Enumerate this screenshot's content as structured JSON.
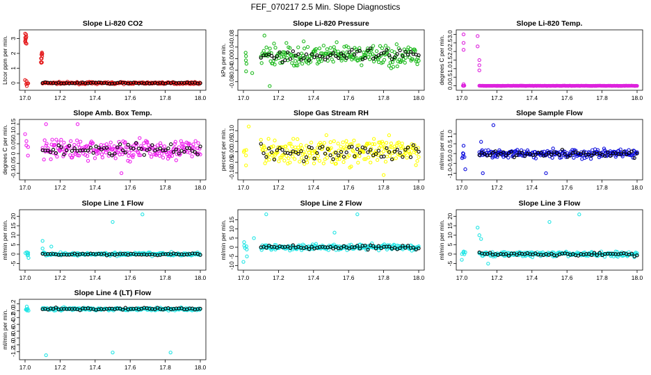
{
  "suptitle": "FEF_070217  2.5 Min. Slope Diagnostics",
  "chart_data": [
    {
      "type": "scatter",
      "title": "Slope Li-820 CO2",
      "ylabel": "Ltcor ppm per min.",
      "xlim": [
        17.0,
        18.0
      ],
      "ylim": [
        -0.3,
        3.4
      ],
      "xticks": [
        "17.0",
        "17.2",
        "17.4",
        "17.6",
        "17.8",
        "18.0"
      ],
      "yticks": [
        0,
        1,
        2,
        3
      ],
      "ytick_labels": [
        "0",
        "1",
        "2",
        "3"
      ],
      "color": "#e41a1c",
      "black_overlay": true,
      "series": {
        "clusters": [
          [
            17.0,
            17.01,
            3.0,
            0.4
          ],
          [
            17.09,
            17.1,
            1.7,
            0.4
          ]
        ],
        "base": 0.0,
        "spread": 0.08,
        "outliers": [
          [
            17.0,
            0.2
          ],
          [
            17.01,
            -0.2
          ]
        ]
      }
    },
    {
      "type": "scatter",
      "title": "Slope Li-820 Pressure",
      "ylabel": "kPa per min.",
      "xlim": [
        17.0,
        18.0
      ],
      "ylim": [
        -0.1,
        0.09
      ],
      "xticks": [
        "17.0",
        "17.2",
        "17.4",
        "17.6",
        "17.8",
        "18.0"
      ],
      "yticks": [
        -0.08,
        -0.04,
        0.0,
        0.04,
        0.08
      ],
      "ytick_labels": [
        "-0.08",
        "-0.04",
        "0.00",
        "0.04",
        "0.08"
      ],
      "color": "#22bb22",
      "black_overlay": true,
      "series": {
        "base": 0.01,
        "spread": 0.035,
        "outliers": [
          [
            17.15,
            -0.095
          ],
          [
            17.12,
            0.08
          ],
          [
            17.05,
            -0.05
          ]
        ]
      }
    },
    {
      "type": "scatter",
      "title": "Slope Li-820 Temp.",
      "ylabel": "degrees C per min.",
      "xlim": [
        17.0,
        18.0
      ],
      "ylim": [
        -0.1,
        3.1
      ],
      "xticks": [
        "17.0",
        "17.2",
        "17.4",
        "17.6",
        "17.8",
        "18.0"
      ],
      "yticks": [
        0.0,
        0.5,
        1.0,
        1.5,
        2.0,
        2.5,
        3.0
      ],
      "ytick_labels": [
        "0.0",
        "0.5",
        "1.0",
        "1.5",
        "2.0",
        "2.5",
        "3.0"
      ],
      "color": "#dd22dd",
      "black_overlay": false,
      "series": {
        "base": 0.0,
        "spread": 0.01,
        "outliers": [
          [
            17.01,
            3.0
          ],
          [
            17.01,
            2.5
          ],
          [
            17.01,
            2.1
          ],
          [
            17.09,
            2.9
          ],
          [
            17.09,
            2.3
          ],
          [
            17.1,
            1.5
          ],
          [
            17.1,
            1.2
          ],
          [
            17.1,
            0.9
          ],
          [
            17.01,
            0.1
          ]
        ]
      }
    },
    {
      "type": "scatter",
      "title": "Slope Amb. Box Temp.",
      "ylabel": "degrees C per min.",
      "xlim": [
        17.0,
        18.0
      ],
      "ylim": [
        -0.12,
        0.16
      ],
      "xticks": [
        "17.0",
        "17.2",
        "17.4",
        "17.6",
        "17.8",
        "18.0"
      ],
      "yticks": [
        -0.1,
        -0.05,
        0.0,
        0.05,
        0.1,
        0.15
      ],
      "ytick_labels": [
        "-0.1",
        "-0.05",
        "0",
        "0.05",
        "0.1",
        "0.15"
      ],
      "color": "#ee22ee",
      "black_overlay": true,
      "series": {
        "base": 0.02,
        "spread": 0.05,
        "outliers": [
          [
            17.12,
            0.15
          ],
          [
            17.3,
            0.15
          ],
          [
            17.55,
            -0.1
          ]
        ]
      }
    },
    {
      "type": "scatter",
      "title": "Slope Gas Stream RH",
      "ylabel": "percent per min.",
      "xlim": [
        17.0,
        18.0
      ],
      "ylim": [
        -0.12,
        0.14
      ],
      "xticks": [
        "17.0",
        "17.2",
        "17.4",
        "17.6",
        "17.8",
        "18.0"
      ],
      "yticks": [
        -0.1,
        -0.05,
        0.0,
        0.05,
        0.1
      ],
      "ytick_labels": [
        "-0.10",
        "-0.05",
        "0.00",
        "0.05",
        "0.10"
      ],
      "color": "#ffff00",
      "black_overlay": true,
      "series": {
        "base": 0.0,
        "spread": 0.06,
        "outliers": [
          [
            17.03,
            0.12
          ],
          [
            17.8,
            -0.11
          ]
        ]
      }
    },
    {
      "type": "scatter",
      "title": "Slope Sample Flow",
      "ylabel": "ml/min per min.",
      "xlim": [
        17.0,
        18.0
      ],
      "ylim": [
        -1.2,
        1.6
      ],
      "xticks": [
        "17.0",
        "17.2",
        "17.4",
        "17.6",
        "17.8",
        "18.0"
      ],
      "yticks": [
        -1.0,
        -0.5,
        0.0,
        0.5,
        1.0
      ],
      "ytick_labels": [
        "-1.0",
        "-0.5",
        "0.0",
        "0.5",
        "1.0"
      ],
      "color": "#1010dd",
      "black_overlay": true,
      "series": {
        "base": 0.0,
        "spread": 0.28,
        "outliers": [
          [
            17.11,
            0.6
          ],
          [
            17.12,
            -1.0
          ],
          [
            17.18,
            1.45
          ],
          [
            17.48,
            -1.0
          ],
          [
            17.02,
            -0.8
          ],
          [
            17.01,
            0.4
          ]
        ]
      }
    },
    {
      "type": "scatter",
      "title": "Slope Line 1 Flow",
      "ylabel": "ml/min per min.",
      "xlim": [
        17.0,
        18.0
      ],
      "ylim": [
        -7,
        22
      ],
      "xticks": [
        "17.0",
        "17.2",
        "17.4",
        "17.6",
        "17.8",
        "18.0"
      ],
      "yticks": [
        -5,
        0,
        5,
        10,
        15,
        20
      ],
      "ytick_labels": [
        "-5",
        "0",
        "5",
        "10",
        "15",
        "20"
      ],
      "color": "#22e5e5",
      "black_overlay": true,
      "series": {
        "base": 0.0,
        "spread": 1.0,
        "outliers": [
          [
            17.1,
            7
          ],
          [
            17.1,
            3
          ],
          [
            17.15,
            4
          ],
          [
            17.5,
            17
          ],
          [
            17.67,
            21
          ],
          [
            17.02,
            -2
          ],
          [
            17.01,
            1
          ]
        ]
      }
    },
    {
      "type": "scatter",
      "title": "Slope Line 2 Flow",
      "ylabel": "ml/min per min.",
      "xlim": [
        17.0,
        18.0
      ],
      "ylim": [
        -11,
        19
      ],
      "xticks": [
        "17.0",
        "17.2",
        "17.4",
        "17.6",
        "17.8",
        "18.0"
      ],
      "yticks": [
        -10,
        -5,
        0,
        5,
        10,
        15
      ],
      "ytick_labels": [
        "-10",
        "-5",
        "0",
        "5",
        "10",
        "15"
      ],
      "color": "#22e5e5",
      "black_overlay": true,
      "series": {
        "base": 0.0,
        "spread": 2.0,
        "outliers": [
          [
            17.13,
            18
          ],
          [
            17.65,
            18
          ],
          [
            17.52,
            8
          ],
          [
            17.06,
            5
          ],
          [
            17.0,
            -8
          ],
          [
            17.02,
            -5
          ]
        ]
      }
    },
    {
      "type": "scatter",
      "title": "Slope Line 3 Flow",
      "ylabel": "ml/min per min.",
      "xlim": [
        17.0,
        18.0
      ],
      "ylim": [
        -7,
        22
      ],
      "xticks": [
        "17.0",
        "17.2",
        "17.4",
        "17.6",
        "17.8",
        "18.0"
      ],
      "yticks": [
        -5,
        0,
        5,
        10,
        15,
        20
      ],
      "ytick_labels": [
        "-5",
        "0",
        "5",
        "10",
        "15",
        "20"
      ],
      "color": "#22e5e5",
      "black_overlay": true,
      "series": {
        "base": 0.0,
        "spread": 1.5,
        "outliers": [
          [
            17.09,
            14
          ],
          [
            17.1,
            10
          ],
          [
            17.11,
            8
          ],
          [
            17.5,
            17
          ],
          [
            17.67,
            21
          ],
          [
            17.15,
            -5
          ],
          [
            17.0,
            -3
          ],
          [
            17.02,
            1
          ]
        ]
      }
    },
    {
      "type": "scatter",
      "title": "Slope Line 4 (LT) Flow",
      "ylabel": "ml/min per min.",
      "xlim": [
        17.0,
        18.0
      ],
      "ylim": [
        -1.35,
        0.25
      ],
      "xticks": [
        "17.0",
        "17.2",
        "17.4",
        "17.6",
        "17.8",
        "18.0"
      ],
      "yticks": [
        -1.2,
        -1.0,
        -0.8,
        -0.6,
        -0.4,
        -0.2,
        0.0,
        0.2
      ],
      "ytick_labels": [
        "-1.2",
        "-1.0",
        "-0.8",
        "-0.6",
        "-0.4",
        "-0.2",
        "0.0",
        "0.2"
      ],
      "color": "#22e5e5",
      "black_overlay": true,
      "series": {
        "base": 0.05,
        "spread": 0.05,
        "outliers": [
          [
            17.12,
            -1.3
          ],
          [
            17.5,
            -1.22
          ],
          [
            17.83,
            -1.22
          ],
          [
            17.02,
            0.0
          ],
          [
            17.01,
            0.12
          ]
        ]
      }
    }
  ]
}
